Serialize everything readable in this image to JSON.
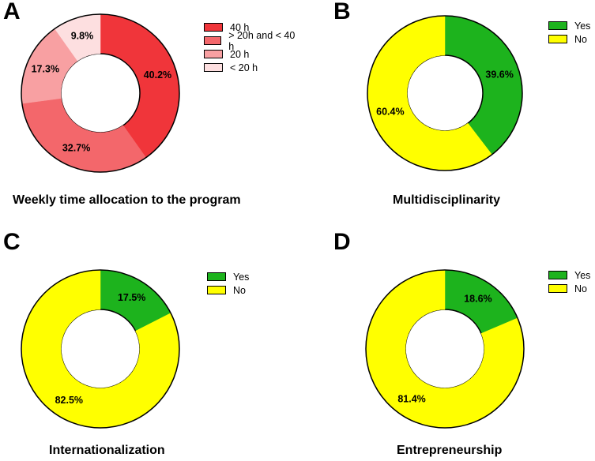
{
  "chart_data": [
    {
      "id": "A",
      "type": "pie",
      "panel_letter": "A",
      "title": "Weekly time allocation to the program",
      "slices": [
        {
          "label": "40 h",
          "value": 40.2,
          "display": "40.2%",
          "color": "#f0353a"
        },
        {
          "label": "> 20h and < 40 h",
          "value": 32.7,
          "display": "32.7%",
          "color": "#f3676b"
        },
        {
          "label": "20 h",
          "value": 17.3,
          "display": "17.3%",
          "color": "#f8a0a2"
        },
        {
          "label": "< 20 h",
          "value": 9.8,
          "display": "9.8%",
          "color": "#fddfe0"
        }
      ]
    },
    {
      "id": "B",
      "type": "pie",
      "panel_letter": "B",
      "title": "Multidisciplinarity",
      "slices": [
        {
          "label": "Yes",
          "value": 39.6,
          "display": "39.6%",
          "color": "#1db31d"
        },
        {
          "label": "No",
          "value": 60.4,
          "display": "60.4%",
          "color": "#ffff00"
        }
      ]
    },
    {
      "id": "C",
      "type": "pie",
      "panel_letter": "C",
      "title": "Internationalization",
      "slices": [
        {
          "label": "Yes",
          "value": 17.5,
          "display": "17.5%",
          "color": "#1db31d"
        },
        {
          "label": "No",
          "value": 82.5,
          "display": "82.5%",
          "color": "#ffff00"
        }
      ]
    },
    {
      "id": "D",
      "type": "pie",
      "panel_letter": "D",
      "title": "Entrepreneurship",
      "slices": [
        {
          "label": "Yes",
          "value": 18.6,
          "display": "18.6%",
          "color": "#1db31d"
        },
        {
          "label": "No",
          "value": 81.4,
          "display": "81.4%",
          "color": "#ffff00"
        }
      ]
    }
  ]
}
